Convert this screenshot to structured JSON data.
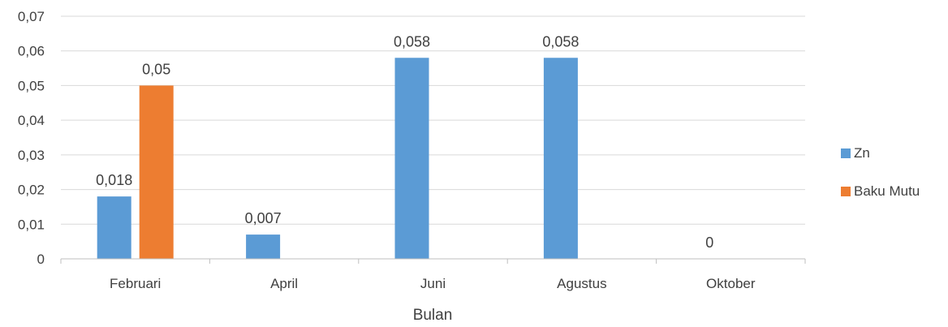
{
  "chart_data": {
    "type": "bar",
    "title": "",
    "xlabel": "Bulan",
    "ylabel": "",
    "categories": [
      "Februari",
      "April",
      "Juni",
      "Agustus",
      "Oktober"
    ],
    "series": [
      {
        "name": "Zn",
        "color": "#5b9bd5",
        "values": [
          0.018,
          0.007,
          0.058,
          0.058,
          0
        ],
        "labels": [
          "0,018",
          "0,007",
          "0,058",
          "0,058",
          "0"
        ]
      },
      {
        "name": "Baku Mutu",
        "color": "#ed7d31",
        "values": [
          0.05,
          null,
          null,
          null,
          null
        ],
        "labels": [
          "0,05",
          null,
          null,
          null,
          null
        ]
      }
    ],
    "ylim": [
      0,
      0.07
    ],
    "yticks": [
      0,
      0.01,
      0.02,
      0.03,
      0.04,
      0.05,
      0.06,
      0.07
    ],
    "ytick_labels": [
      "0",
      "0,01",
      "0,02",
      "0,03",
      "0,04",
      "0,05",
      "0,06",
      "0,07"
    ],
    "grid": true,
    "legend_position": "right"
  }
}
